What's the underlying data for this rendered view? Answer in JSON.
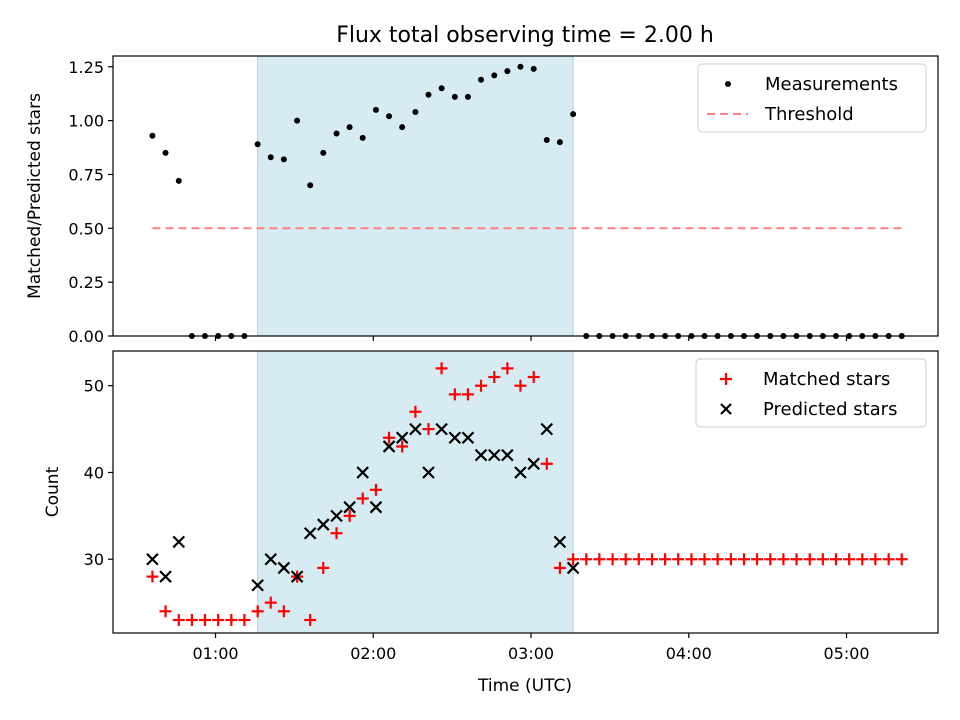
{
  "figure": {
    "title": "Flux total observing time = 2.00 h",
    "xlabel": "Time (UTC)",
    "x_tick_labels": [
      "01:00",
      "02:00",
      "03:00",
      "04:00",
      "05:00"
    ],
    "x_tick_values": [
      1.0,
      2.0,
      3.0,
      4.0,
      5.0
    ],
    "xlim": [
      0.35,
      5.58
    ],
    "shaded_interval": [
      1.267,
      3.267
    ],
    "shade_color": "#add8e6"
  },
  "chart_data": [
    {
      "type": "scatter",
      "panel": "top",
      "ylabel": "Matched/Predicted stars",
      "ylim": [
        0,
        1.3
      ],
      "y_ticks": [
        0.0,
        0.25,
        0.5,
        0.75,
        1.0,
        1.25
      ],
      "y_tick_labels": [
        "0.00",
        "0.25",
        "0.50",
        "0.75",
        "1.00",
        "1.25"
      ],
      "legend_position": "top-right",
      "series": [
        {
          "name": "Measurements",
          "kind": "points",
          "color": "#000000",
          "x": [
            0.6,
            0.683,
            0.767,
            0.85,
            0.933,
            1.017,
            1.1,
            1.183,
            1.267,
            1.35,
            1.433,
            1.517,
            1.6,
            1.683,
            1.767,
            1.85,
            1.933,
            2.017,
            2.1,
            2.183,
            2.267,
            2.35,
            2.433,
            2.517,
            2.6,
            2.683,
            2.767,
            2.85,
            2.933,
            3.017,
            3.1,
            3.183,
            3.267,
            3.35,
            3.433,
            3.517,
            3.6,
            3.683,
            3.767,
            3.85,
            3.933,
            4.017,
            4.1,
            4.183,
            4.267,
            4.35,
            4.433,
            4.517,
            4.6,
            4.683,
            4.767,
            4.85,
            4.933,
            5.017,
            5.1,
            5.183,
            5.267,
            5.35
          ],
          "y": [
            0.93,
            0.85,
            0.72,
            0,
            0,
            0,
            0,
            0,
            0.89,
            0.83,
            0.82,
            1.0,
            0.7,
            0.85,
            0.94,
            0.97,
            0.92,
            1.05,
            1.02,
            0.97,
            1.04,
            1.12,
            1.15,
            1.11,
            1.11,
            1.19,
            1.21,
            1.23,
            1.25,
            1.24,
            0.91,
            0.9,
            1.03,
            0,
            0,
            0,
            0,
            0,
            0,
            0,
            0,
            0,
            0,
            0,
            0,
            0,
            0,
            0,
            0,
            0,
            0,
            0,
            0,
            0,
            0,
            0,
            0,
            0
          ]
        },
        {
          "name": "Threshold",
          "kind": "dashed-line",
          "color": "#ff8080",
          "x": [
            0.6,
            5.35
          ],
          "y": [
            0.5,
            0.5
          ]
        }
      ]
    },
    {
      "type": "scatter",
      "panel": "bottom",
      "ylabel": "Count",
      "ylim": [
        21.5,
        54
      ],
      "y_ticks": [
        30,
        40,
        50
      ],
      "y_tick_labels": [
        "30",
        "40",
        "50"
      ],
      "legend_position": "top-right",
      "series": [
        {
          "name": "Matched stars",
          "marker": "plus",
          "color": "#ff0000",
          "x": [
            0.6,
            0.683,
            0.767,
            0.85,
            0.933,
            1.017,
            1.1,
            1.183,
            1.267,
            1.35,
            1.433,
            1.517,
            1.6,
            1.683,
            1.767,
            1.85,
            1.933,
            2.017,
            2.1,
            2.183,
            2.267,
            2.35,
            2.433,
            2.517,
            2.6,
            2.683,
            2.767,
            2.85,
            2.933,
            3.017,
            3.1,
            3.183,
            3.267,
            3.35,
            3.433,
            3.517,
            3.6,
            3.683,
            3.767,
            3.85,
            3.933,
            4.017,
            4.1,
            4.183,
            4.267,
            4.35,
            4.433,
            4.517,
            4.6,
            4.683,
            4.767,
            4.85,
            4.933,
            5.017,
            5.1,
            5.183,
            5.267,
            5.35
          ],
          "y": [
            28,
            24,
            23,
            23,
            23,
            23,
            23,
            23,
            24,
            25,
            24,
            28,
            23,
            29,
            33,
            35,
            37,
            38,
            44,
            43,
            47,
            45,
            52,
            49,
            49,
            50,
            51,
            52,
            50,
            51,
            41,
            29,
            30,
            30,
            30,
            30,
            30,
            30,
            30,
            30,
            30,
            30,
            30,
            30,
            30,
            30,
            30,
            30,
            30,
            30,
            30,
            30,
            30,
            30,
            30,
            30,
            30,
            30
          ]
        },
        {
          "name": "Predicted stars",
          "marker": "x",
          "color": "#000000",
          "x": [
            0.6,
            0.683,
            0.767,
            1.267,
            1.35,
            1.433,
            1.517,
            1.6,
            1.683,
            1.767,
            1.85,
            1.933,
            2.017,
            2.1,
            2.183,
            2.267,
            2.35,
            2.433,
            2.517,
            2.6,
            2.683,
            2.767,
            2.85,
            2.933,
            3.017,
            3.1,
            3.183,
            3.267
          ],
          "y": [
            30,
            28,
            32,
            27,
            30,
            29,
            28,
            33,
            34,
            35,
            36,
            40,
            36,
            43,
            44,
            45,
            40,
            45,
            44,
            44,
            42,
            42,
            42,
            40,
            41,
            45,
            32,
            29
          ]
        }
      ]
    }
  ]
}
